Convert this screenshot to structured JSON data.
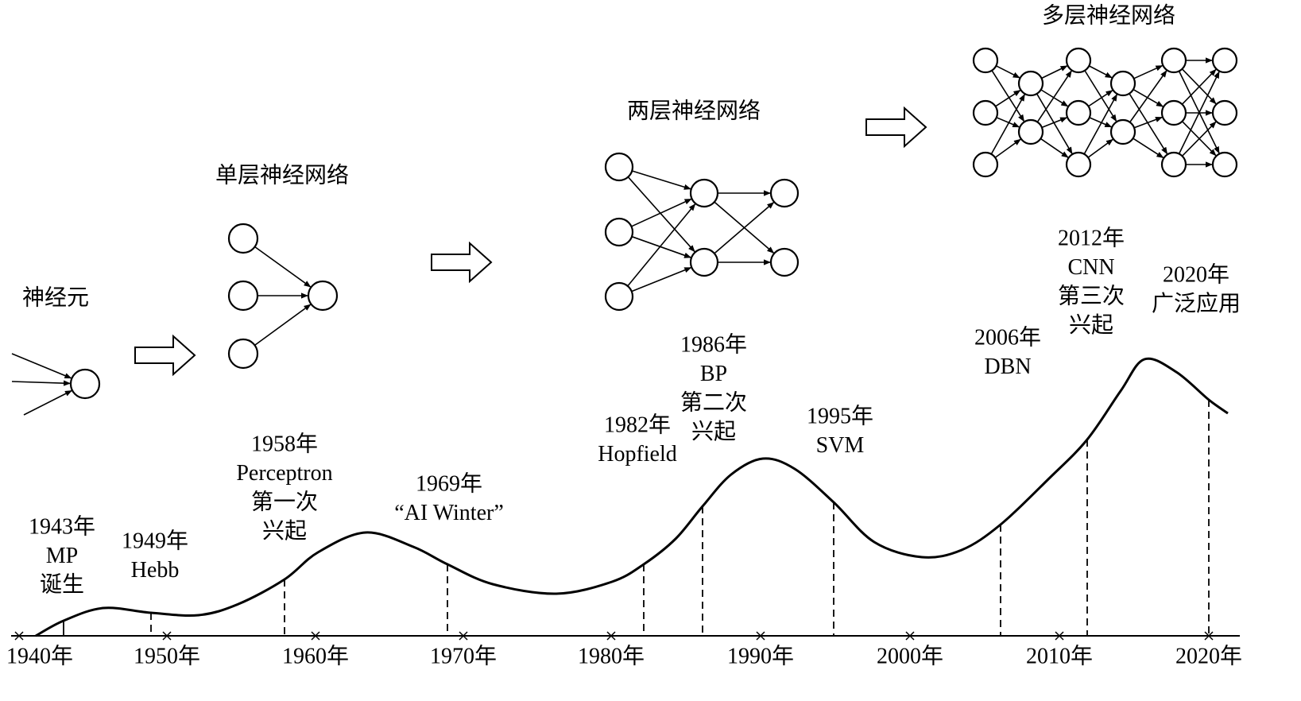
{
  "titles": {
    "neuron": "神经元",
    "single": "单层神经网络",
    "two": "两层神经网络",
    "multi": "多层神经网络"
  },
  "timeline": {
    "ticks": [
      "1940年",
      "1950年",
      "1960年",
      "1970年",
      "1980年",
      "1990年",
      "2000年",
      "2010年",
      "2020年"
    ]
  },
  "events": [
    {
      "lines": [
        "1943年",
        "MP",
        "诞生"
      ]
    },
    {
      "lines": [
        "1949年",
        "Hebb"
      ]
    },
    {
      "lines": [
        "1958年",
        "Perceptron",
        "第一次",
        "兴起"
      ]
    },
    {
      "lines": [
        "1969年",
        "“AI Winter”"
      ]
    },
    {
      "lines": [
        "1982年",
        "Hopfield"
      ]
    },
    {
      "lines": [
        "1986年",
        "BP",
        "第二次",
        "兴起"
      ]
    },
    {
      "lines": [
        "1995年",
        "SVM"
      ]
    },
    {
      "lines": [
        "2006年",
        "DBN"
      ]
    },
    {
      "lines": [
        "2012年",
        "CNN",
        "第三次",
        "兴起"
      ]
    },
    {
      "lines": [
        "2020年",
        "广泛应用"
      ]
    }
  ]
}
